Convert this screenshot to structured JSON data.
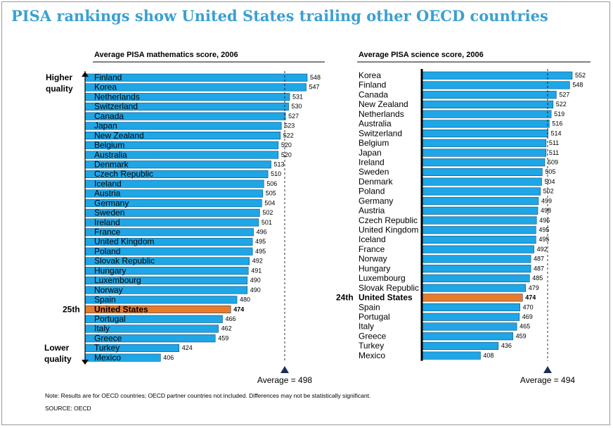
{
  "title": "PISA rankings show United States trailing other OECD countries",
  "footnote": "Note: Results are for OECD countries; OECD partner countries not included. Differences may not be statistically significant.",
  "source": "SOURCE: OECD",
  "colors": {
    "bar": "#1ea6e6",
    "highlight": "#e87a2c",
    "title": "#3aa0d2",
    "marker": "#1b2f56"
  },
  "chart_data": [
    {
      "type": "bar",
      "orientation": "horizontal",
      "title": "Average PISA mathematics score, 2006",
      "categories": [
        "Finland",
        "Korea",
        "Netherlands",
        "Switzerland",
        "Canada",
        "Japan",
        "New Zealand",
        "Belgium",
        "Australia",
        "Denmark",
        "Czech Republic",
        "Iceland",
        "Austria",
        "Germany",
        "Sweden",
        "Ireland",
        "France",
        "United Kingdom",
        "Poland",
        "Slovak Republic",
        "Hungary",
        "Luxembourg",
        "Norway",
        "Spain",
        "United States",
        "Portugal",
        "Italy",
        "Greece",
        "Turkey",
        "Mexico"
      ],
      "values": [
        548,
        547,
        531,
        530,
        527,
        523,
        522,
        520,
        520,
        513,
        510,
        506,
        505,
        504,
        502,
        501,
        496,
        495,
        495,
        492,
        491,
        490,
        490,
        480,
        474,
        466,
        462,
        459,
        424,
        406
      ],
      "highlight": "United States",
      "rank_label": "25th",
      "top_label": [
        "Higher",
        "quality"
      ],
      "bottom_label": [
        "Lower",
        "quality"
      ],
      "average": 498,
      "average_label": "Average = 498",
      "xlim": [
        333,
        548
      ]
    },
    {
      "type": "bar",
      "orientation": "horizontal",
      "title": "Average PISA science score, 2006",
      "categories": [
        "Korea",
        "Finland",
        "Canada",
        "New Zealand",
        "Netherlands",
        "Australia",
        "Switzerland",
        "Belgium",
        "Japan",
        "Ireland",
        "Sweden",
        "Denmark",
        "Poland",
        "Germany",
        "Austria",
        "Czech Republic",
        "United Kingdom",
        "Iceland",
        "France",
        "Norway",
        "Hungary",
        "Luxembourg",
        "Slovak Republic",
        "United States",
        "Spain",
        "Portugal",
        "Italy",
        "Greece",
        "Turkey",
        "Mexico"
      ],
      "values": [
        552,
        548,
        527,
        522,
        519,
        516,
        514,
        511,
        511,
        509,
        505,
        504,
        502,
        499,
        498,
        496,
        495,
        495,
        492,
        487,
        487,
        485,
        479,
        474,
        470,
        469,
        465,
        459,
        436,
        408
      ],
      "highlight": "United States",
      "rank_label": "24th",
      "average": 494,
      "average_label": "Average = 494",
      "xlim": [
        316,
        552
      ]
    }
  ]
}
